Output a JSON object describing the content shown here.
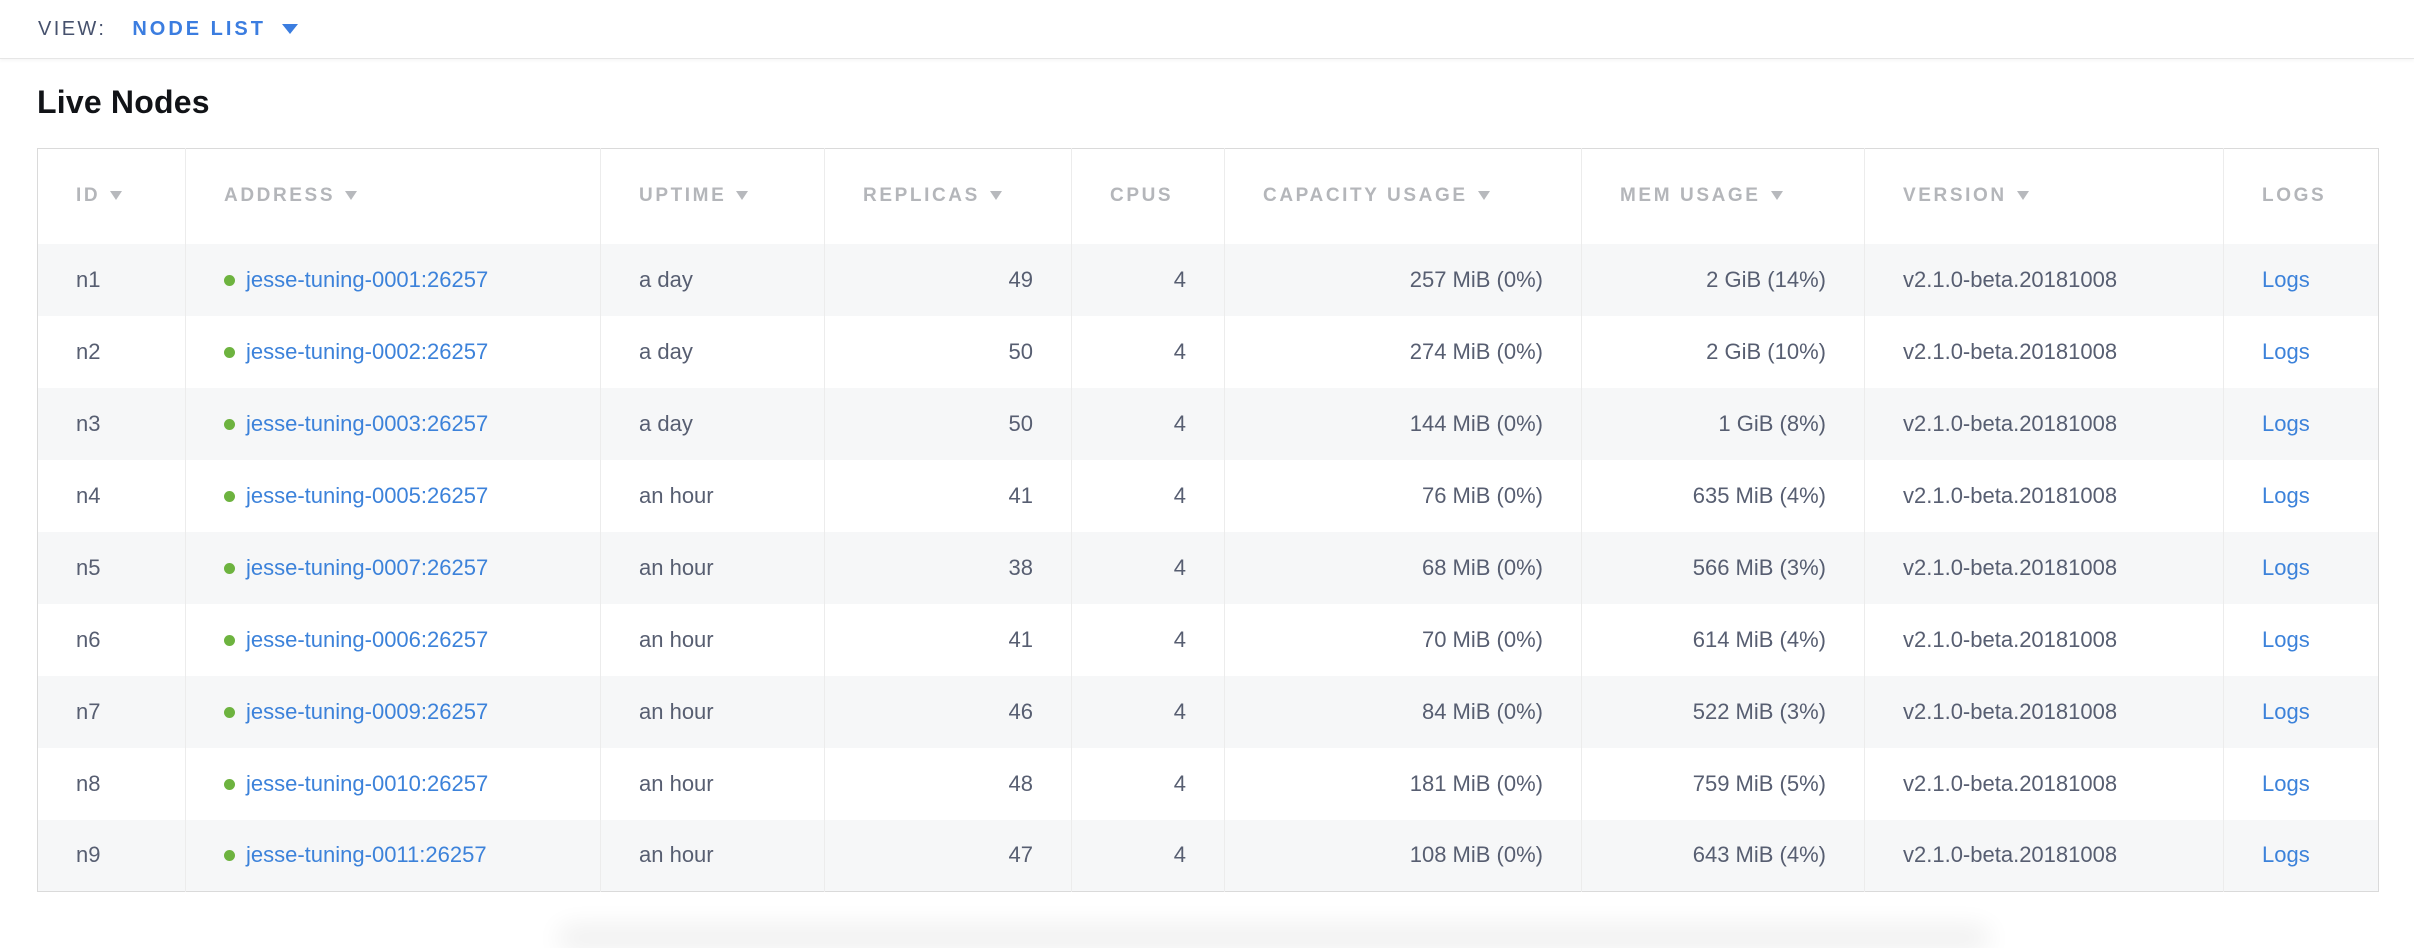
{
  "view_bar": {
    "label": "VIEW:",
    "selected_view": "NODE LIST"
  },
  "page": {
    "title": "Live Nodes"
  },
  "table": {
    "columns": [
      {
        "label": "ID",
        "sortable": true
      },
      {
        "label": "ADDRESS",
        "sortable": true
      },
      {
        "label": "UPTIME",
        "sortable": true
      },
      {
        "label": "REPLICAS",
        "sortable": true
      },
      {
        "label": "CPUS",
        "sortable": false
      },
      {
        "label": "CAPACITY USAGE",
        "sortable": true
      },
      {
        "label": "MEM USAGE",
        "sortable": true
      },
      {
        "label": "VERSION",
        "sortable": true
      },
      {
        "label": "LOGS",
        "sortable": false
      }
    ],
    "rows": [
      {
        "id": "n1",
        "address": "jesse-tuning-0001:26257",
        "uptime": "a day",
        "replicas": "49",
        "cpus": "4",
        "capacity": "257 MiB (0%)",
        "mem": "2 GiB (14%)",
        "version": "v2.1.0-beta.20181008",
        "logs": "Logs",
        "status": "live"
      },
      {
        "id": "n2",
        "address": "jesse-tuning-0002:26257",
        "uptime": "a day",
        "replicas": "50",
        "cpus": "4",
        "capacity": "274 MiB (0%)",
        "mem": "2 GiB (10%)",
        "version": "v2.1.0-beta.20181008",
        "logs": "Logs",
        "status": "live"
      },
      {
        "id": "n3",
        "address": "jesse-tuning-0003:26257",
        "uptime": "a day",
        "replicas": "50",
        "cpus": "4",
        "capacity": "144 MiB (0%)",
        "mem": "1 GiB (8%)",
        "version": "v2.1.0-beta.20181008",
        "logs": "Logs",
        "status": "live"
      },
      {
        "id": "n4",
        "address": "jesse-tuning-0005:26257",
        "uptime": "an hour",
        "replicas": "41",
        "cpus": "4",
        "capacity": "76 MiB (0%)",
        "mem": "635 MiB (4%)",
        "version": "v2.1.0-beta.20181008",
        "logs": "Logs",
        "status": "live"
      },
      {
        "id": "n5",
        "address": "jesse-tuning-0007:26257",
        "uptime": "an hour",
        "replicas": "38",
        "cpus": "4",
        "capacity": "68 MiB (0%)",
        "mem": "566 MiB (3%)",
        "version": "v2.1.0-beta.20181008",
        "logs": "Logs",
        "status": "live"
      },
      {
        "id": "n6",
        "address": "jesse-tuning-0006:26257",
        "uptime": "an hour",
        "replicas": "41",
        "cpus": "4",
        "capacity": "70 MiB (0%)",
        "mem": "614 MiB (4%)",
        "version": "v2.1.0-beta.20181008",
        "logs": "Logs",
        "status": "live"
      },
      {
        "id": "n7",
        "address": "jesse-tuning-0009:26257",
        "uptime": "an hour",
        "replicas": "46",
        "cpus": "4",
        "capacity": "84 MiB (0%)",
        "mem": "522 MiB (3%)",
        "version": "v2.1.0-beta.20181008",
        "logs": "Logs",
        "status": "live"
      },
      {
        "id": "n8",
        "address": "jesse-tuning-0010:26257",
        "uptime": "an hour",
        "replicas": "48",
        "cpus": "4",
        "capacity": "181 MiB (0%)",
        "mem": "759 MiB (5%)",
        "version": "v2.1.0-beta.20181008",
        "logs": "Logs",
        "status": "live"
      },
      {
        "id": "n9",
        "address": "jesse-tuning-0011:26257",
        "uptime": "an hour",
        "replicas": "47",
        "cpus": "4",
        "capacity": "108 MiB (0%)",
        "mem": "643 MiB (4%)",
        "version": "v2.1.0-beta.20181008",
        "logs": "Logs",
        "status": "live"
      }
    ]
  },
  "colors": {
    "link_blue": "#3c82da",
    "view_accent_blue": "#3b7de0",
    "node_live_green": "#6db33f",
    "header_gray": "#b4b6ba"
  }
}
